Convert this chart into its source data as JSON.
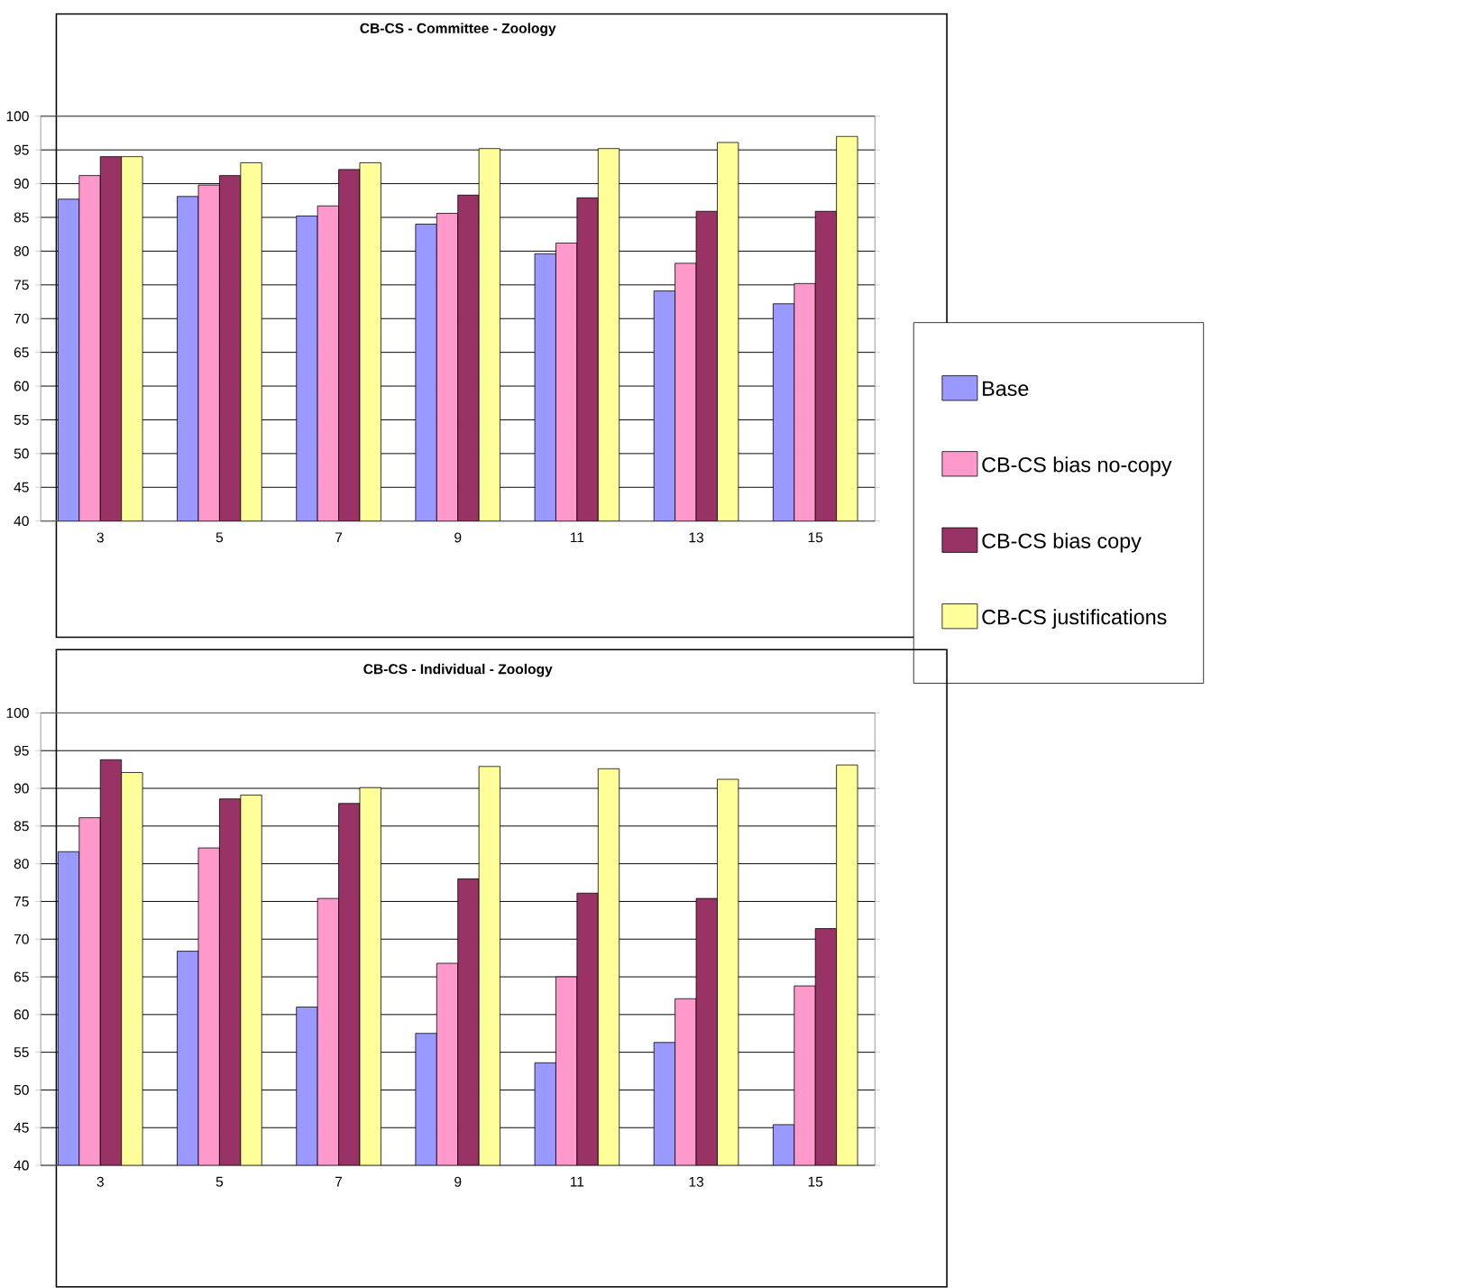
{
  "chart_data": [
    {
      "type": "bar",
      "title": "CB-CS - Committee - Zoology",
      "categories": [
        "3",
        "5",
        "7",
        "9",
        "11",
        "13",
        "15"
      ],
      "ylim": [
        40,
        100
      ],
      "yticks": [
        40,
        45,
        50,
        55,
        60,
        65,
        70,
        75,
        80,
        85,
        90,
        95,
        100
      ],
      "grid": "y",
      "legend": "right",
      "series": [
        {
          "name": "Base",
          "color": "#9999ff",
          "values": [
            87.7,
            88.1,
            85.2,
            84.0,
            79.6,
            74.1,
            72.2
          ]
        },
        {
          "name": "CB-CS bias no-copy",
          "color": "#ff99cc",
          "values": [
            91.2,
            89.8,
            86.7,
            85.6,
            81.2,
            78.2,
            75.2
          ]
        },
        {
          "name": "CB-CS bias copy",
          "color": "#993366",
          "values": [
            94.0,
            91.2,
            92.1,
            88.3,
            87.9,
            85.9,
            85.9
          ]
        },
        {
          "name": "CB-CS justifications",
          "color": "#ffff99",
          "values": [
            94.0,
            93.1,
            93.1,
            95.2,
            95.2,
            96.1,
            97.0
          ]
        }
      ]
    },
    {
      "type": "bar",
      "title": "CB-CS - Individual - Zoology",
      "categories": [
        "3",
        "5",
        "7",
        "9",
        "11",
        "13",
        "15"
      ],
      "ylim": [
        40,
        100
      ],
      "yticks": [
        40,
        45,
        50,
        55,
        60,
        65,
        70,
        75,
        80,
        85,
        90,
        95,
        100
      ],
      "grid": "y",
      "series": [
        {
          "color": "#9999ff",
          "values": [
            81.6,
            68.4,
            61.0,
            57.5,
            53.6,
            56.3,
            45.4
          ]
        },
        {
          "color": "#ff99cc",
          "values": [
            86.1,
            82.1,
            75.4,
            66.8,
            65.0,
            62.1,
            63.8
          ]
        },
        {
          "color": "#993366",
          "values": [
            93.8,
            88.6,
            88.0,
            78.0,
            76.1,
            75.4,
            71.4
          ]
        },
        {
          "color": "#ffff99",
          "values": [
            92.1,
            89.1,
            90.1,
            92.9,
            92.6,
            91.2,
            93.1
          ]
        }
      ]
    }
  ]
}
